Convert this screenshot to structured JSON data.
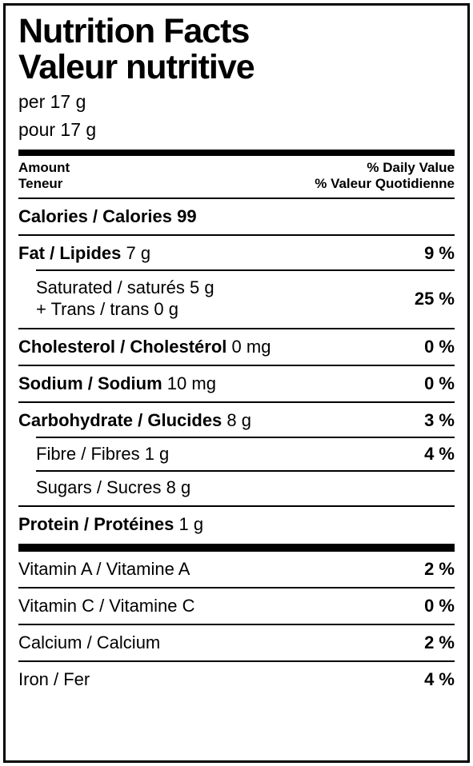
{
  "title_en": "Nutrition Facts",
  "title_fr": "Valeur nutritive",
  "serving_en": "per 17 g",
  "serving_fr": "pour 17 g",
  "hdr": {
    "amount_en": "Amount",
    "amount_fr": "Teneur",
    "dv_en": "% Daily Value",
    "dv_fr": "% Valeur Quotidienne"
  },
  "calories": {
    "label": "Calories / Calories",
    "value": "99"
  },
  "fat": {
    "label": "Fat / Lipides",
    "value": "7 g",
    "dv": "9 %"
  },
  "sat": {
    "line1": "Saturated / saturés  5 g",
    "line2": "+ Trans / trans  0 g",
    "dv": "25 %"
  },
  "chol": {
    "label": "Cholesterol / Cholestérol",
    "value": "0 mg",
    "dv": "0 %"
  },
  "sodium": {
    "label": "Sodium / Sodium",
    "value": "10 mg",
    "dv": "0 %"
  },
  "carb": {
    "label": "Carbohydrate / Glucides",
    "value": "8 g",
    "dv": "3 %"
  },
  "fibre": {
    "label": "Fibre / Fibres  1 g",
    "dv": "4 %"
  },
  "sugars": {
    "label": "Sugars / Sucres  8 g"
  },
  "protein": {
    "label": "Protein / Protéines",
    "value": "1 g"
  },
  "vitA": {
    "label": "Vitamin A / Vitamine A",
    "dv": "2 %"
  },
  "vitC": {
    "label": "Vitamin C / Vitamine C",
    "dv": "0 %"
  },
  "calcium": {
    "label": "Calcium / Calcium",
    "dv": "2 %"
  },
  "iron": {
    "label": "Iron / Fer",
    "dv": "4 %"
  }
}
